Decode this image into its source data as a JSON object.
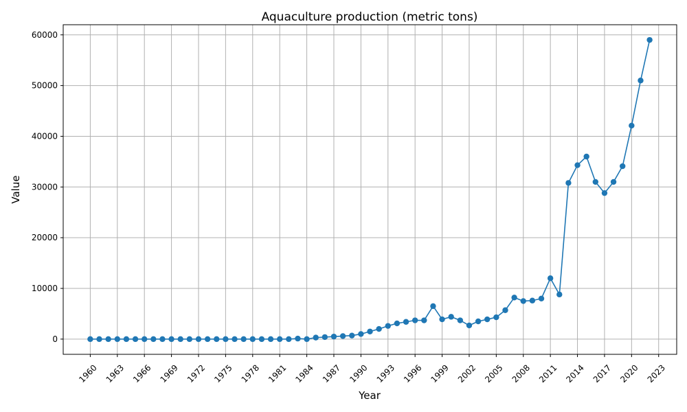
{
  "chart_data": {
    "type": "line",
    "title": "Aquaculture production (metric tons)",
    "xlabel": "Year",
    "ylabel": "Value",
    "xlim": [
      1957,
      2025
    ],
    "ylim": [
      -3000,
      62000
    ],
    "grid": true,
    "legend": "none",
    "x_ticks": [
      1960,
      1963,
      1966,
      1969,
      1972,
      1975,
      1978,
      1981,
      1984,
      1987,
      1990,
      1993,
      1996,
      1999,
      2002,
      2005,
      2008,
      2011,
      2014,
      2017,
      2020,
      2023
    ],
    "y_ticks": [
      0,
      10000,
      20000,
      30000,
      40000,
      50000,
      60000
    ],
    "series": [
      {
        "color": "#1f77b4",
        "marker": "circle",
        "x": [
          1960,
          1961,
          1962,
          1963,
          1964,
          1965,
          1966,
          1967,
          1968,
          1969,
          1970,
          1971,
          1972,
          1973,
          1974,
          1975,
          1976,
          1977,
          1978,
          1979,
          1980,
          1981,
          1982,
          1983,
          1984,
          1985,
          1986,
          1987,
          1988,
          1989,
          1990,
          1991,
          1992,
          1993,
          1994,
          1995,
          1996,
          1997,
          1998,
          1999,
          2000,
          2001,
          2002,
          2003,
          2004,
          2005,
          2006,
          2007,
          2008,
          2009,
          2010,
          2011,
          2012,
          2013,
          2014,
          2015,
          2016,
          2017,
          2018,
          2019,
          2020,
          2021,
          2022
        ],
        "y": [
          0,
          0,
          0,
          0,
          0,
          0,
          0,
          0,
          0,
          0,
          0,
          0,
          0,
          0,
          0,
          0,
          0,
          0,
          0,
          0,
          0,
          0,
          0,
          100,
          0,
          300,
          400,
          500,
          600,
          700,
          1000,
          1500,
          2000,
          2600,
          3100,
          3400,
          3700,
          3700,
          6500,
          3900,
          4400,
          3700,
          2700,
          3500,
          3900,
          4300,
          5700,
          8200,
          7500,
          7600,
          8000,
          12000,
          8800,
          30800,
          34300,
          36000,
          31000,
          28800,
          31000,
          34100,
          42100,
          51000,
          59000
        ]
      }
    ]
  }
}
